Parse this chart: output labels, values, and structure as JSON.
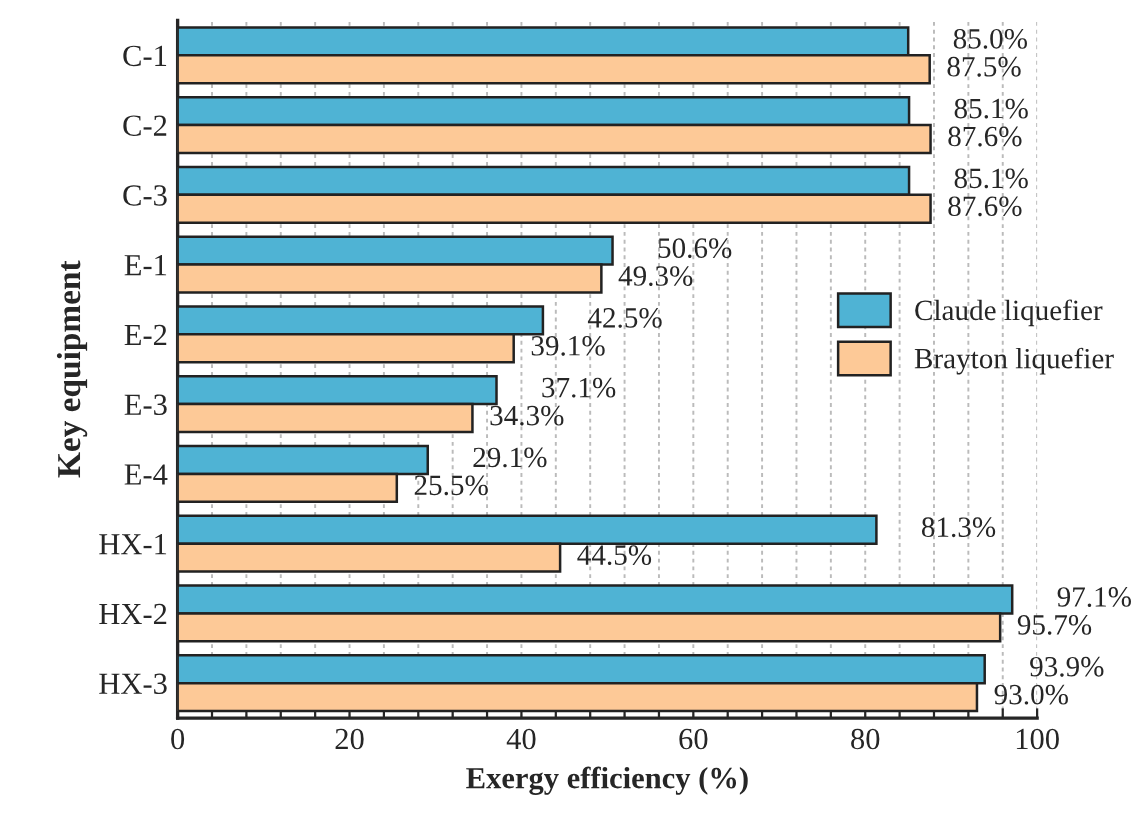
{
  "chart_data": {
    "type": "bar",
    "orientation": "horizontal",
    "xlabel": "Exergy efficiency (%)",
    "ylabel": "Key equipment",
    "categories": [
      "C-1",
      "C-2",
      "C-3",
      "E-1",
      "E-2",
      "E-3",
      "E-4",
      "HX-1",
      "HX-2",
      "HX-3"
    ],
    "series": [
      {
        "name": "Claude liquefier",
        "color": "#4fb3d4",
        "values": [
          85.0,
          85.1,
          85.1,
          50.6,
          42.5,
          37.1,
          29.1,
          81.3,
          97.1,
          93.9
        ],
        "value_labels": [
          "85.0%",
          "85.1%",
          "85.1%",
          "50.6%",
          "42.5%",
          "37.1%",
          "29.1%",
          "81.3%",
          "97.1%",
          "93.9%"
        ]
      },
      {
        "name": "Brayton liquefier",
        "color": "#fdc997",
        "values": [
          87.5,
          87.6,
          87.6,
          49.3,
          39.1,
          34.3,
          25.5,
          44.5,
          95.7,
          93.0
        ],
        "value_labels": [
          "87.5%",
          "87.6%",
          "87.6%",
          "49.3%",
          "39.1%",
          "34.3%",
          "25.5%",
          "44.5%",
          "95.7%",
          "93.0%"
        ]
      }
    ],
    "xlim": [
      0,
      100
    ],
    "xticks": [
      0,
      {
        "value": 4,
        "label": null
      },
      {
        "value": 8,
        "label": null
      },
      {
        "value": 12,
        "label": null
      },
      {
        "value": 16,
        "label": null
      },
      20,
      {
        "value": 24,
        "label": null
      },
      {
        "value": 28,
        "label": null
      },
      {
        "value": 32,
        "label": null
      },
      {
        "value": 36,
        "label": null
      },
      40,
      {
        "value": 44,
        "label": null
      },
      {
        "value": 48,
        "label": null
      },
      {
        "value": 52,
        "label": null
      },
      {
        "value": 56,
        "label": null
      },
      60,
      {
        "value": 64,
        "label": null
      },
      {
        "value": 68,
        "label": null
      },
      {
        "value": 72,
        "label": null
      },
      {
        "value": 76,
        "label": null
      },
      80,
      {
        "value": 84,
        "label": null
      },
      {
        "value": 88,
        "label": null
      },
      {
        "value": 92,
        "label": null
      },
      {
        "value": 96,
        "label": null
      },
      100
    ],
    "grid": "x",
    "legend": "right"
  }
}
